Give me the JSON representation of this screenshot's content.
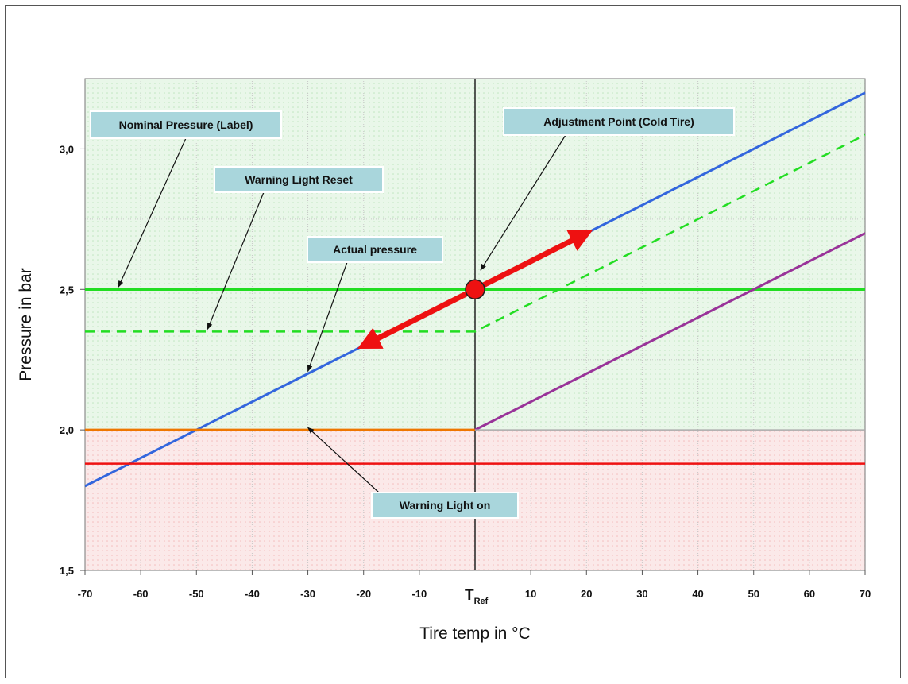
{
  "chart_data": {
    "type": "line",
    "xlabel": "Tire temp in °C",
    "ylabel": "Pressure in bar",
    "xlim": [
      -70,
      70
    ],
    "ylim": [
      1.5,
      3.25
    ],
    "x_ticks": [
      {
        "value": -70,
        "label": "-70"
      },
      {
        "value": -60,
        "label": "-60"
      },
      {
        "value": -50,
        "label": "-50"
      },
      {
        "value": -40,
        "label": "-40"
      },
      {
        "value": -30,
        "label": "-30"
      },
      {
        "value": -20,
        "label": "-20"
      },
      {
        "value": -10,
        "label": "-10"
      },
      {
        "value": 10,
        "label": "10"
      },
      {
        "value": 20,
        "label": "20"
      },
      {
        "value": 30,
        "label": "30"
      },
      {
        "value": 40,
        "label": "40"
      },
      {
        "value": 50,
        "label": "50"
      },
      {
        "value": 60,
        "label": "60"
      },
      {
        "value": 70,
        "label": "70"
      }
    ],
    "tref_label": {
      "main": "T",
      "sub": "Ref",
      "value": 0
    },
    "y_ticks": [
      {
        "value": 1.5,
        "label": "1,5"
      },
      {
        "value": 2.0,
        "label": "2,0"
      },
      {
        "value": 2.5,
        "label": "2,5"
      },
      {
        "value": 3.0,
        "label": "3,0"
      }
    ],
    "grid": true,
    "series": [
      {
        "key": "actual-pressure",
        "color": "#3366dd",
        "dash": "",
        "width": 3,
        "x": [
          -70,
          70
        ],
        "y": [
          1.8,
          3.2
        ]
      },
      {
        "key": "nominal-pressure",
        "color": "#22dd22",
        "dash": "",
        "width": 3.5,
        "x": [
          -70,
          70
        ],
        "y": [
          2.5,
          2.5
        ]
      },
      {
        "key": "warning-light-reset",
        "color": "#22dd22",
        "dash": "12,8",
        "width": 2.5,
        "x": [
          -70,
          0,
          0,
          70
        ],
        "y": [
          2.35,
          2.35,
          2.35,
          3.05
        ]
      },
      {
        "key": "warning-light-on-threshold",
        "color": "#ee7700",
        "dash": "",
        "width": 3,
        "x": [
          -70,
          0
        ],
        "y": [
          2.0,
          2.0
        ]
      },
      {
        "key": "warning-light-on",
        "color": "#ee1111",
        "dash": "",
        "width": 2.5,
        "x": [
          -70,
          70
        ],
        "y": [
          1.88,
          1.88
        ]
      },
      {
        "key": "warm-threshold",
        "color": "#993399",
        "dash": "",
        "width": 3,
        "x": [
          0,
          70
        ],
        "y": [
          2.0,
          2.7
        ]
      },
      {
        "key": "warm-threshold-base",
        "color": "#aaaaaa",
        "dash": "",
        "width": 1.5,
        "x": [
          0,
          70
        ],
        "y": [
          2.0,
          2.0
        ]
      }
    ],
    "adjustment_point": {
      "x": 0,
      "y": 2.5,
      "color": "#ee1111"
    },
    "adjustment_arrows": [
      {
        "from": [
          0,
          2.5
        ],
        "to": [
          20,
          2.7
        ]
      },
      {
        "from": [
          0,
          2.5
        ],
        "to": [
          -20,
          2.3
        ]
      }
    ],
    "annotations": [
      {
        "key": "nominal-pressure-label",
        "text": "Nominal Pressure (Label)",
        "arrow_to": [
          -64,
          2.5
        ]
      },
      {
        "key": "warning-light-reset-label",
        "text": "Warning Light Reset",
        "arrow_to": [
          -48,
          2.35
        ]
      },
      {
        "key": "actual-pressure-label",
        "text": "Actual pressure",
        "arrow_to": [
          -30,
          2.2
        ]
      },
      {
        "key": "adjustment-point-label",
        "text": "Adjustment Point (Cold Tire)",
        "arrow_to": [
          1,
          2.56
        ]
      },
      {
        "key": "warning-light-on-label",
        "text": "Warning Light on",
        "arrow_to": [
          -30,
          2.0
        ]
      }
    ],
    "callout_style": {
      "fill": "#a9d6dc",
      "text_color": "#111111"
    },
    "background": {
      "upper_color": "#e9f7e9",
      "lower_color": "#fbe9e9",
      "split_at": 2.0
    }
  }
}
